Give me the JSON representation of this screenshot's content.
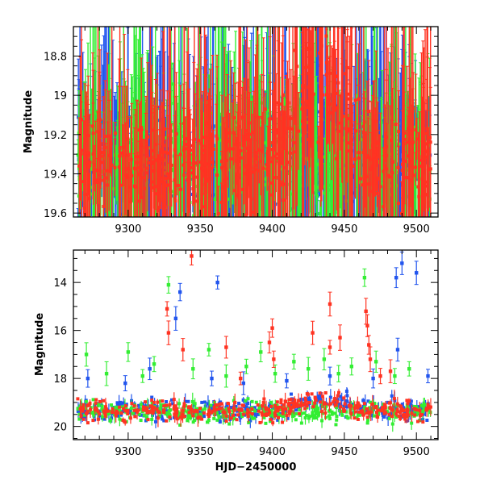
{
  "chart_data": [
    {
      "type": "scatter",
      "panel": "top",
      "xlabel": "",
      "ylabel": "Magnitude",
      "xlim": [
        9262,
        9515
      ],
      "ylim": [
        19.62,
        18.65
      ],
      "y_inverted": true,
      "x_ticks": [
        "9300",
        "9350",
        "9400",
        "9450",
        "9500"
      ],
      "y_ticks": [
        "18.8",
        "19",
        "19.2",
        "19.4",
        "19.6"
      ],
      "grid": false,
      "legend": "none",
      "series": [
        {
          "color": "#2255ee",
          "baseline": 19.33,
          "scatter": 0.12,
          "x_range": [
            9265,
            9510
          ],
          "dip": {
            "center": 9437,
            "width": 9,
            "depth": 0.42
          }
        },
        {
          "color": "#33ee33",
          "baseline": 19.33,
          "scatter": 0.12,
          "x_range": [
            9265,
            9510
          ],
          "dip": {
            "center": 9437,
            "width": 9,
            "depth": 0.42
          }
        },
        {
          "color": "#ff3322",
          "baseline": 19.35,
          "scatter": 0.12,
          "x_range": [
            9265,
            9510
          ],
          "bump": {
            "center": 9432,
            "width": 22,
            "height": 0.45
          }
        }
      ]
    },
    {
      "type": "scatter",
      "panel": "bottom",
      "xlabel": "HJD−2450000",
      "ylabel": "Magnitude",
      "xlim": [
        9262,
        9515
      ],
      "ylim": [
        20.55,
        12.65
      ],
      "y_inverted": true,
      "x_ticks": [
        "9300",
        "9350",
        "9400",
        "9450",
        "9500"
      ],
      "y_ticks": [
        "14",
        "16",
        "18",
        "20"
      ],
      "grid": false,
      "legend": "none",
      "series": [
        {
          "color": "#2255ee",
          "baseline": 19.35,
          "scatter": 0.2,
          "x_range": [
            9265,
            9510
          ],
          "bump": {
            "center": 9432,
            "width": 22,
            "height": 0.45
          },
          "outliers": [
            [
              9272,
              18.0
            ],
            [
              9298,
              18.2
            ],
            [
              9315,
              17.6
            ],
            [
              9333,
              15.5
            ],
            [
              9336,
              14.4
            ],
            [
              9358,
              18.0
            ],
            [
              9362,
              14.0
            ],
            [
              9380,
              18.2
            ],
            [
              9410,
              18.1
            ],
            [
              9440,
              17.9
            ],
            [
              9470,
              18.0
            ],
            [
              9486,
              13.8
            ],
            [
              9487,
              16.8
            ],
            [
              9490,
              13.2
            ],
            [
              9500,
              13.6
            ],
            [
              9508,
              17.9
            ]
          ]
        },
        {
          "color": "#33ee33",
          "baseline": 19.4,
          "scatter": 0.2,
          "x_range": [
            9265,
            9510
          ],
          "outliers": [
            [
              9271,
              17.0
            ],
            [
              9285,
              17.8
            ],
            [
              9300,
              16.9
            ],
            [
              9310,
              17.9
            ],
            [
              9318,
              17.4
            ],
            [
              9328,
              14.1
            ],
            [
              9345,
              17.6
            ],
            [
              9356,
              16.8
            ],
            [
              9368,
              17.9
            ],
            [
              9382,
              17.5
            ],
            [
              9392,
              16.9
            ],
            [
              9402,
              17.8
            ],
            [
              9415,
              17.3
            ],
            [
              9425,
              17.6
            ],
            [
              9436,
              17.2
            ],
            [
              9446,
              17.8
            ],
            [
              9455,
              17.5
            ],
            [
              9464,
              13.8
            ],
            [
              9472,
              17.3
            ],
            [
              9485,
              17.9
            ],
            [
              9495,
              17.6
            ]
          ]
        },
        {
          "color": "#ff3322",
          "baseline": 19.35,
          "scatter": 0.2,
          "x_range": [
            9265,
            9510
          ],
          "bump": {
            "center": 9432,
            "width": 22,
            "height": 0.45
          },
          "outliers": [
            [
              9327,
              15.1
            ],
            [
              9328,
              16.1
            ],
            [
              9338,
              16.8
            ],
            [
              9344,
              12.9
            ],
            [
              9368,
              16.7
            ],
            [
              9378,
              18.0
            ],
            [
              9398,
              16.5
            ],
            [
              9400,
              15.9
            ],
            [
              9401,
              17.2
            ],
            [
              9428,
              16.1
            ],
            [
              9440,
              14.9
            ],
            [
              9440,
              16.7
            ],
            [
              9447,
              16.3
            ],
            [
              9465,
              15.2
            ],
            [
              9466,
              15.8
            ],
            [
              9467,
              16.6
            ],
            [
              9468,
              17.2
            ],
            [
              9475,
              17.9
            ],
            [
              9482,
              17.7
            ]
          ]
        }
      ]
    }
  ]
}
